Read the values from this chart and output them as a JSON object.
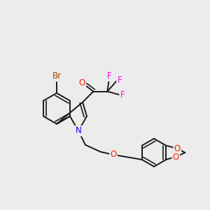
{
  "background_color": "#ececec",
  "bond_color": "#1a1a1a",
  "atom_colors": {
    "Br": "#964B00",
    "N": "#0000FF",
    "O": "#FF2200",
    "F": "#FF00FF"
  },
  "lw": 1.4,
  "fs": 8.5
}
